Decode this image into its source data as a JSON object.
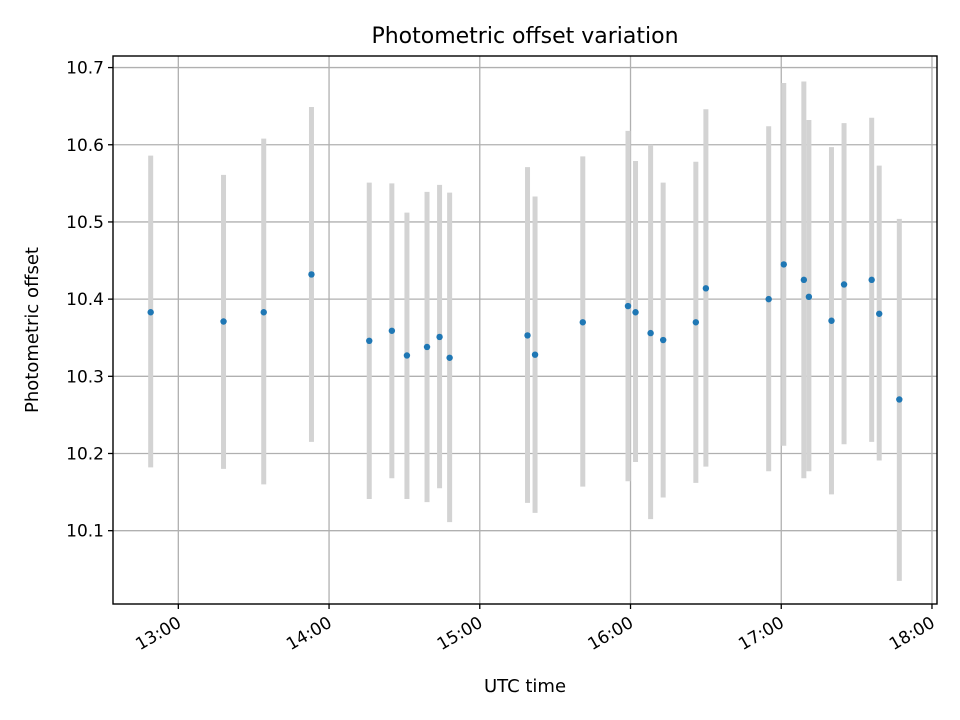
{
  "chart_data": {
    "type": "scatter",
    "title": "Photometric offset variation",
    "xlabel": "UTC time",
    "ylabel": "Photometric offset",
    "xlim": [
      "12:34",
      "18:02"
    ],
    "ylim": [
      10.005,
      10.715
    ],
    "x_ticks": [
      "13:00",
      "14:00",
      "15:00",
      "16:00",
      "17:00",
      "18:00"
    ],
    "y_ticks": [
      10.1,
      10.2,
      10.3,
      10.4,
      10.5,
      10.6,
      10.7
    ],
    "y_tick_labels": [
      "10.1",
      "10.2",
      "10.3",
      "10.4",
      "10.5",
      "10.6",
      "10.7"
    ],
    "grid": true,
    "colors": {
      "point": "#1f77b4",
      "errorbar": "#d3d3d3"
    },
    "series": [
      {
        "points": [
          {
            "x": "12:49",
            "y": 10.383,
            "ylow": 10.182,
            "yhigh": 10.586
          },
          {
            "x": "13:18",
            "y": 10.371,
            "ylow": 10.18,
            "yhigh": 10.561
          },
          {
            "x": "13:34",
            "y": 10.383,
            "ylow": 10.16,
            "yhigh": 10.608
          },
          {
            "x": "13:53",
            "y": 10.432,
            "ylow": 10.215,
            "yhigh": 10.649
          },
          {
            "x": "14:16",
            "y": 10.346,
            "ylow": 10.141,
            "yhigh": 10.551
          },
          {
            "x": "14:25",
            "y": 10.359,
            "ylow": 10.168,
            "yhigh": 10.55
          },
          {
            "x": "14:31",
            "y": 10.327,
            "ylow": 10.141,
            "yhigh": 10.512
          },
          {
            "x": "14:39",
            "y": 10.338,
            "ylow": 10.137,
            "yhigh": 10.539
          },
          {
            "x": "14:44",
            "y": 10.351,
            "ylow": 10.155,
            "yhigh": 10.548
          },
          {
            "x": "14:48",
            "y": 10.324,
            "ylow": 10.111,
            "yhigh": 10.538
          },
          {
            "x": "15:19",
            "y": 10.353,
            "ylow": 10.136,
            "yhigh": 10.571
          },
          {
            "x": "15:22",
            "y": 10.328,
            "ylow": 10.123,
            "yhigh": 10.533
          },
          {
            "x": "15:41",
            "y": 10.37,
            "ylow": 10.157,
            "yhigh": 10.585
          },
          {
            "x": "15:59",
            "y": 10.391,
            "ylow": 10.164,
            "yhigh": 10.618
          },
          {
            "x": "16:02",
            "y": 10.383,
            "ylow": 10.189,
            "yhigh": 10.579
          },
          {
            "x": "16:08",
            "y": 10.356,
            "ylow": 10.115,
            "yhigh": 10.6
          },
          {
            "x": "16:13",
            "y": 10.347,
            "ylow": 10.143,
            "yhigh": 10.551
          },
          {
            "x": "16:26",
            "y": 10.37,
            "ylow": 10.162,
            "yhigh": 10.578
          },
          {
            "x": "16:30",
            "y": 10.414,
            "ylow": 10.183,
            "yhigh": 10.646
          },
          {
            "x": "16:55",
            "y": 10.4,
            "ylow": 10.177,
            "yhigh": 10.624
          },
          {
            "x": "17:01",
            "y": 10.445,
            "ylow": 10.21,
            "yhigh": 10.68
          },
          {
            "x": "17:09",
            "y": 10.425,
            "ylow": 10.168,
            "yhigh": 10.682
          },
          {
            "x": "17:11",
            "y": 10.403,
            "ylow": 10.177,
            "yhigh": 10.632
          },
          {
            "x": "17:20",
            "y": 10.372,
            "ylow": 10.147,
            "yhigh": 10.597
          },
          {
            "x": "17:25",
            "y": 10.419,
            "ylow": 10.212,
            "yhigh": 10.628
          },
          {
            "x": "17:36",
            "y": 10.425,
            "ylow": 10.215,
            "yhigh": 10.635
          },
          {
            "x": "17:39",
            "y": 10.381,
            "ylow": 10.191,
            "yhigh": 10.573
          },
          {
            "x": "17:47",
            "y": 10.27,
            "ylow": 10.035,
            "yhigh": 10.504
          }
        ]
      }
    ]
  }
}
